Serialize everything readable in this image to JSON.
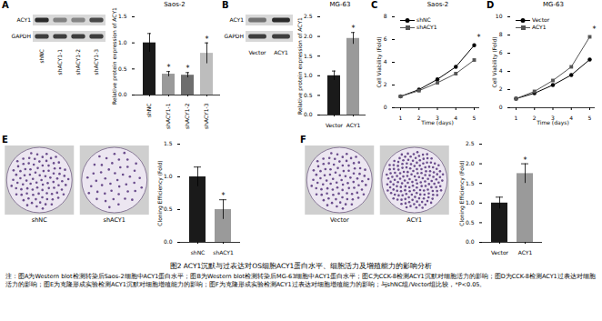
{
  "figure": {
    "caption": "图2  ACY1沉默与过表达对OS细胞ACY1蛋白水平、细胞活力及增殖能力的影响分析",
    "note": "注：图A为Western blot检测转染后Saos-2细胞中ACY1蛋白水平；图B为Western blot检测转染后MG-63细胞中ACY1蛋白水平；图C为CCK-8检测ACY1沉默对细胞活力的影响；图D为CCK-8检测ACY1过表达对细胞活力的影响；图E为克隆形成实验检测ACY1沉默对细胞增殖能力的影响；图F为克隆形成实验检测ACY1过表达对细胞增殖能力的影响；与shNC组/Vector组比较，*P<0.05。"
  },
  "chart_data": [
    {
      "panel": "A",
      "type": "bar",
      "title": "Saos-2",
      "y_label": "Relative protein expression of ACY1",
      "blot_rows": [
        "ACY1",
        "GAPDH"
      ],
      "categories": [
        "shNC",
        "shACY1-1",
        "shACY1-2",
        "shACY1-3"
      ],
      "values": [
        1.0,
        0.4,
        0.38,
        0.8
      ],
      "errors": [
        0.18,
        0.05,
        0.05,
        0.2
      ],
      "significance": [
        null,
        "*",
        "*",
        "*"
      ],
      "colors": [
        "#1a1a1a",
        "#9a9a9a",
        "#6e6e6e",
        "#bdbdbd"
      ],
      "ylim": [
        0,
        1.5
      ],
      "yticks": [
        {
          "value": 0,
          "label": "0.0"
        },
        0.5,
        {
          "value": 1,
          "label": "1.0"
        },
        1.5
      ]
    },
    {
      "panel": "B",
      "type": "bar",
      "title": "MG-63",
      "y_label": "Relative protein expression of ACY1",
      "blot_rows": [
        "ACY1",
        "GAPDH"
      ],
      "categories": [
        "Vector",
        "ACY1"
      ],
      "values": [
        1.0,
        1.95
      ],
      "errors": [
        0.12,
        0.15
      ],
      "significance": [
        null,
        "*"
      ],
      "colors": [
        "#1a1a1a",
        "#9a9a9a"
      ],
      "ylim": [
        0,
        2.5
      ],
      "yticks": [
        {
          "value": 0,
          "label": "0.0"
        },
        0.5,
        {
          "value": 1,
          "label": "1.0"
        },
        1.5,
        {
          "value": 2,
          "label": "2.0"
        },
        2.5
      ]
    },
    {
      "panel": "C",
      "type": "line",
      "title": "Saos-2",
      "x_label": "Time (days)",
      "y_label": "Cell Viability (Fold)",
      "x": [
        1,
        2,
        3,
        4,
        5
      ],
      "series": [
        {
          "name": "shNC",
          "color": "#000000",
          "marker": "circle",
          "values": [
            1.0,
            1.6,
            2.5,
            3.6,
            5.5
          ]
        },
        {
          "name": "shACY1",
          "color": "#555555",
          "marker": "square",
          "values": [
            1.0,
            1.5,
            2.2,
            3.0,
            4.2
          ]
        }
      ],
      "annotations": [
        {
          "x": 5,
          "y": 6.2,
          "text": "*"
        }
      ],
      "legend": "top-left",
      "xlim": [
        1,
        5
      ],
      "xticks": [
        1,
        2,
        3,
        4,
        5
      ],
      "ylim": [
        0,
        8
      ],
      "yticks": [
        0,
        2,
        4,
        6,
        8
      ]
    },
    {
      "panel": "D",
      "type": "line",
      "title": "MG-63",
      "x_label": "Time (days)",
      "y_label": "Cell Viability (Fold)",
      "x": [
        1,
        2,
        3,
        4,
        5
      ],
      "series": [
        {
          "name": "Vector",
          "color": "#000000",
          "marker": "circle",
          "values": [
            1.0,
            1.6,
            2.5,
            3.6,
            5.3
          ]
        },
        {
          "name": "ACY1",
          "color": "#555555",
          "marker": "square",
          "values": [
            1.0,
            1.8,
            3.0,
            4.5,
            7.8
          ]
        }
      ],
      "annotations": [
        {
          "x": 5,
          "y": 8.6,
          "text": "*"
        }
      ],
      "legend": "top-left",
      "xlim": [
        1,
        5
      ],
      "xticks": [
        1,
        2,
        3,
        4,
        5
      ],
      "ylim": [
        0,
        10
      ],
      "yticks": [
        0,
        2,
        4,
        6,
        8,
        10
      ]
    },
    {
      "panel": "E",
      "type": "bar",
      "y_label": "Cloning Efficiency (Fold)",
      "plate_labels": [
        "shNC",
        "shACY1"
      ],
      "categories": [
        "shNC",
        "shACY1"
      ],
      "values": [
        1.0,
        0.5
      ],
      "errors": [
        0.15,
        0.15
      ],
      "significance": [
        null,
        "*"
      ],
      "colors": [
        "#1a1a1a",
        "#9a9a9a"
      ],
      "ylim": [
        0,
        1.5
      ],
      "yticks": [
        {
          "value": 0,
          "label": "0.0"
        },
        0.5,
        {
          "value": 1,
          "label": "1.0"
        },
        1.5
      ]
    },
    {
      "panel": "F",
      "type": "bar",
      "y_label": "Cloning Efficiency (Fold)",
      "plate_labels": [
        "Vector",
        "ACY1"
      ],
      "categories": [
        "Vector",
        "ACY1"
      ],
      "values": [
        1.0,
        1.75
      ],
      "errors": [
        0.15,
        0.25
      ],
      "significance": [
        null,
        "*"
      ],
      "colors": [
        "#1a1a1a",
        "#9a9a9a"
      ],
      "ylim": [
        0,
        2.5
      ],
      "yticks": [
        {
          "value": 0,
          "label": "0.0"
        },
        0.5,
        {
          "value": 1,
          "label": "1.0"
        },
        1.5,
        {
          "value": 2,
          "label": "2.0"
        },
        2.5
      ]
    }
  ]
}
